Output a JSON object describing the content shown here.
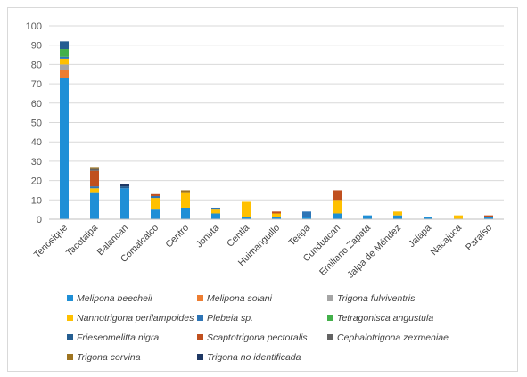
{
  "chart_data": {
    "type": "bar",
    "stacked": true,
    "categories": [
      "Tenosique",
      "Tacotalpa",
      "Balancan",
      "Comalcalco",
      "Centro",
      "Jonuta",
      "Centla",
      "Huimanguillo",
      "Teapa",
      "Cunduacan",
      "Emiliano Zapata",
      "Jalpa de Méndez",
      "Jalapa",
      "Nacajuca",
      "Paraíso"
    ],
    "ylim": [
      0,
      100
    ],
    "yticks": [
      0,
      10,
      20,
      30,
      40,
      50,
      60,
      70,
      80,
      90,
      100
    ],
    "grid": true,
    "legend_position": "bottom",
    "series": [
      {
        "name": "Melipona beecheii",
        "color": "#1f8fd6",
        "values": [
          73,
          14,
          16,
          5,
          6,
          3,
          1,
          1,
          1,
          3,
          2,
          2,
          1,
          0,
          1
        ]
      },
      {
        "name": "Melipona solani",
        "color": "#ed7d31",
        "values": [
          4,
          0,
          0,
          0,
          0,
          0,
          0,
          0,
          0,
          0,
          0,
          0,
          0,
          0,
          0
        ]
      },
      {
        "name": "Trigona fulviventris",
        "color": "#a5a5a5",
        "values": [
          3,
          0,
          0,
          0,
          0,
          0,
          0,
          0,
          0,
          0,
          0,
          0,
          0,
          0,
          0
        ]
      },
      {
        "name": "Nannotrigona perilampoides",
        "color": "#ffc000",
        "values": [
          3,
          2,
          0,
          6,
          8,
          2,
          8,
          2,
          0,
          7,
          0,
          2,
          0,
          2,
          0
        ]
      },
      {
        "name": "Plebeia sp.",
        "color": "#2e75b6",
        "values": [
          1,
          1,
          0,
          1,
          0,
          1,
          0,
          0,
          3,
          0,
          0,
          0,
          0,
          0,
          0
        ]
      },
      {
        "name": "Tetragonisca angustula",
        "color": "#43b04a",
        "values": [
          4,
          0,
          0,
          0,
          0,
          0,
          0,
          0,
          0,
          0,
          0,
          0,
          0,
          0,
          0
        ]
      },
      {
        "name": "Frieseomelitta nigra",
        "color": "#255e91",
        "values": [
          4,
          0,
          1,
          0,
          0,
          0,
          0,
          0,
          0,
          0,
          0,
          0,
          0,
          0,
          0
        ]
      },
      {
        "name": "Scaptotrigona pectoralis",
        "color": "#c0501f",
        "values": [
          0,
          8,
          0,
          1,
          0,
          0,
          0,
          1,
          0,
          5,
          0,
          0,
          0,
          0,
          1
        ]
      },
      {
        "name": "Cephalotrigona zexmeniae",
        "color": "#636363",
        "values": [
          0,
          1,
          0,
          0,
          0,
          0,
          0,
          0,
          0,
          0,
          0,
          0,
          0,
          0,
          0
        ]
      },
      {
        "name": "Trigona corvina",
        "color": "#9e7420",
        "values": [
          0,
          1,
          0,
          0,
          1,
          0,
          0,
          0,
          0,
          0,
          0,
          0,
          0,
          0,
          0
        ]
      },
      {
        "name": "Trigona no identificada",
        "color": "#1f3864",
        "values": [
          0,
          0,
          1,
          0,
          0,
          0,
          0,
          0,
          0,
          0,
          0,
          0,
          0,
          0,
          0
        ]
      }
    ]
  }
}
